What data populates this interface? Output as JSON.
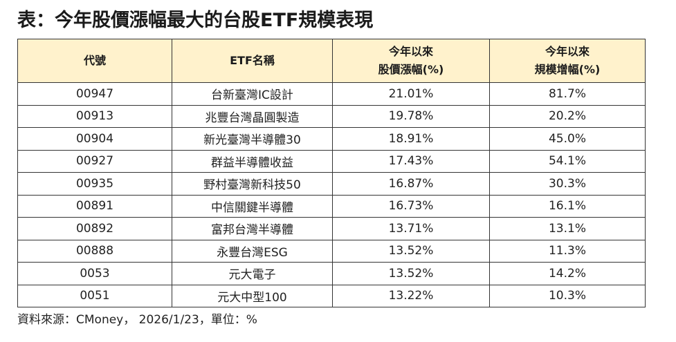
{
  "title": "表：今年股價漲幅最大的台股ETF規模表現",
  "table": {
    "headers": {
      "code": "代號",
      "name": "ETF名稱",
      "price_line1": "今年以來",
      "price_line2": "股價漲幅(%)",
      "scale_line1": "今年以來",
      "scale_line2": "規模增幅(%)"
    },
    "rows": [
      {
        "code": "00947",
        "name": "台新臺灣IC設計",
        "price": "21.01%",
        "scale": "81.7%"
      },
      {
        "code": "00913",
        "name": "兆豐台灣晶圓製造",
        "price": "19.78%",
        "scale": "20.2%"
      },
      {
        "code": "00904",
        "name": "新光臺灣半導體30",
        "price": "18.91%",
        "scale": "45.0%"
      },
      {
        "code": "00927",
        "name": "群益半導體收益",
        "price": "17.43%",
        "scale": "54.1%"
      },
      {
        "code": "00935",
        "name": "野村臺灣新科技50",
        "price": "16.87%",
        "scale": "30.3%"
      },
      {
        "code": "00891",
        "name": "中信關鍵半導體",
        "price": "16.73%",
        "scale": "16.1%"
      },
      {
        "code": "00892",
        "name": "富邦台灣半導體",
        "price": "13.71%",
        "scale": "13.1%"
      },
      {
        "code": "00888",
        "name": "永豐台灣ESG",
        "price": "13.52%",
        "scale": "11.3%"
      },
      {
        "code": "0053",
        "name": "元大電子",
        "price": "13.52%",
        "scale": "14.2%"
      },
      {
        "code": "0051",
        "name": "元大中型100",
        "price": "13.22%",
        "scale": "10.3%"
      }
    ]
  },
  "source": "資料來源：CMoney， 2026/1/23，單位：%",
  "colors": {
    "header_background": "#fff2cc",
    "border": "#333333",
    "text": "#222222"
  }
}
